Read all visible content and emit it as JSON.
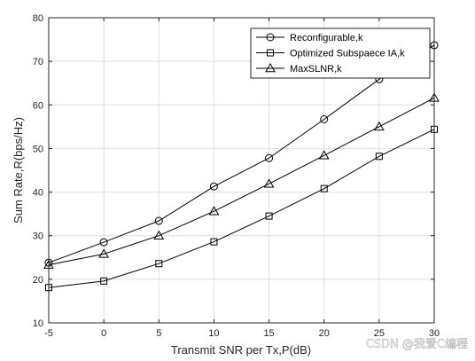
{
  "chart_data": {
    "type": "line",
    "title": "",
    "xlabel": "Transmit SNR per Tx,P(dB)",
    "ylabel": "Sum Rate,R(bps/Hz)",
    "xlim": [
      -5,
      30
    ],
    "ylim": [
      10,
      80
    ],
    "xticks": [
      "-5",
      "0",
      "5",
      "10",
      "15",
      "20",
      "25",
      "30"
    ],
    "yticks": [
      "10",
      "20",
      "30",
      "40",
      "50",
      "60",
      "70",
      "80"
    ],
    "grid": true,
    "legend_position": "top-right",
    "x": [
      -5,
      0,
      5,
      10,
      15,
      20,
      25,
      30
    ],
    "series": [
      {
        "name": "Reconfigurable,k",
        "marker": "circle",
        "color": "#000000",
        "values": [
          23.8,
          28.5,
          33.4,
          41.3,
          47.8,
          56.7,
          65.9,
          73.7
        ]
      },
      {
        "name": "Optimized Subspaece IA,k",
        "marker": "square",
        "color": "#000000",
        "values": [
          18.1,
          19.6,
          23.6,
          28.6,
          34.5,
          40.8,
          48.2,
          54.4
        ]
      },
      {
        "name": "MaxSLNR,k",
        "marker": "triangle",
        "color": "#000000",
        "values": [
          23.3,
          25.8,
          30.0,
          35.6,
          41.9,
          48.4,
          55.0,
          61.6
        ]
      }
    ]
  },
  "watermark": {
    "text": "CSDN @我爱C编程"
  }
}
